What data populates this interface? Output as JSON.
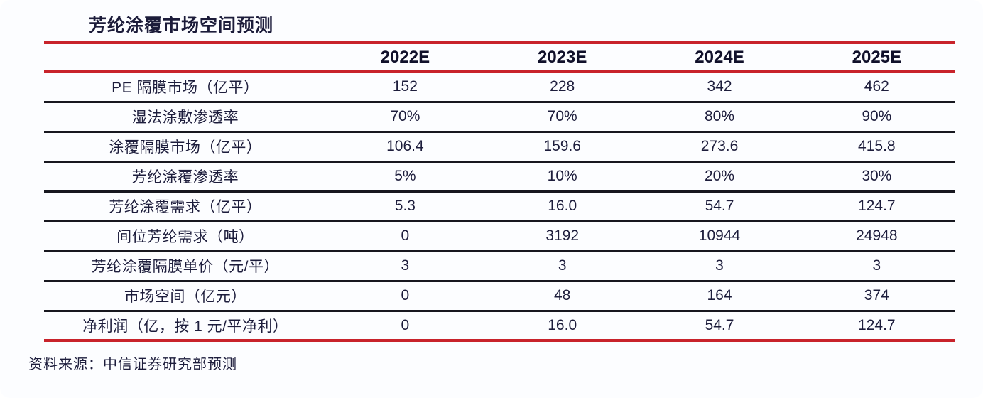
{
  "title": "芳纶涂覆市场空间预测",
  "source_note": "资料来源：中信证券研究部预测",
  "colors": {
    "accent_red": "#c8232b",
    "rule_dark": "#17171f",
    "text_navy": "#1d1d3c",
    "background": "#fcfdff"
  },
  "chart_data": {
    "type": "table",
    "title": "芳纶涂覆市场空间预测",
    "columns": [
      "",
      "2022E",
      "2023E",
      "2024E",
      "2025E"
    ],
    "rows": [
      {
        "label": "PE 隔膜市场（亿平）",
        "values": [
          "152",
          "228",
          "342",
          "462"
        ]
      },
      {
        "label": "湿法涂敷渗透率",
        "values": [
          "70%",
          "70%",
          "80%",
          "90%"
        ]
      },
      {
        "label": "涂覆隔膜市场（亿平）",
        "values": [
          "106.4",
          "159.6",
          "273.6",
          "415.8"
        ]
      },
      {
        "label": "芳纶涂覆渗透率",
        "values": [
          "5%",
          "10%",
          "20%",
          "30%"
        ]
      },
      {
        "label": "芳纶涂覆需求（亿平）",
        "values": [
          "5.3",
          "16.0",
          "54.7",
          "124.7"
        ]
      },
      {
        "label": "间位芳纶需求（吨）",
        "values": [
          "0",
          "3192",
          "10944",
          "24948"
        ]
      },
      {
        "label": "芳纶涂覆隔膜单价（元/平）",
        "values": [
          "3",
          "3",
          "3",
          "3"
        ]
      },
      {
        "label": "市场空间（亿元）",
        "values": [
          "0",
          "48",
          "164",
          "374"
        ]
      },
      {
        "label": "净利润（亿，按 1 元/平净利）",
        "values": [
          "0",
          "16.0",
          "54.7",
          "124.7"
        ]
      }
    ],
    "source": "资料来源：中信证券研究部预测",
    "layout": {
      "header_rule_color": "#c8232b",
      "row_rule_color": "#17171f",
      "bottom_rule_color": "#c8232b",
      "label_column_align": "center",
      "value_align": "center"
    }
  }
}
